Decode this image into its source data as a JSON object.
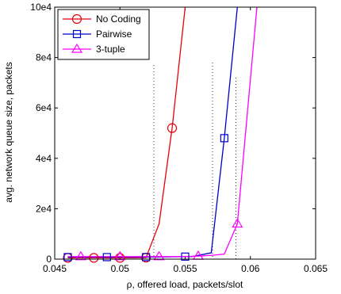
{
  "chart_data": {
    "type": "line",
    "xlabel": "ρ, offered load, packets/slot",
    "ylabel": "avg. network queue size, packets",
    "xlim": [
      0.045,
      0.065
    ],
    "ylim": [
      0,
      100000
    ],
    "xticks": [
      0.045,
      0.05,
      0.055,
      0.06,
      0.065
    ],
    "xtick_labels": [
      "0.045",
      "0.05",
      "0.055",
      "0.06",
      "0.065"
    ],
    "yticks": [
      0,
      20000,
      40000,
      60000,
      80000,
      100000
    ],
    "ytick_labels": [
      "0",
      "2e4",
      "4e4",
      "6e4",
      "8e4",
      "10e4"
    ],
    "grid": false,
    "legend_position": "top-left",
    "vlines": [
      {
        "x": 0.0526,
        "y_top": 77000
      },
      {
        "x": 0.0571,
        "y_top": 78000
      },
      {
        "x": 0.0589,
        "y_top": 72000
      }
    ],
    "series": [
      {
        "name": "No Coding",
        "color": "#e8000b",
        "marker": "circle",
        "x": [
          0.046,
          0.047,
          0.048,
          0.049,
          0.05,
          0.051,
          0.052,
          0.053,
          0.054,
          0.055
        ],
        "y": [
          500,
          500,
          500,
          500,
          500,
          500,
          600,
          14000,
          52000,
          100000
        ],
        "marker_x": [
          0.046,
          0.048,
          0.05,
          0.052,
          0.054
        ],
        "marker_y": [
          500,
          500,
          500,
          600,
          52000
        ]
      },
      {
        "name": "Pairwise",
        "color": "#0000cc",
        "marker": "square",
        "x": [
          0.046,
          0.048,
          0.05,
          0.052,
          0.054,
          0.0555,
          0.057,
          0.058,
          0.059
        ],
        "y": [
          800,
          800,
          800,
          800,
          900,
          1000,
          2500,
          48000,
          100000
        ],
        "marker_x": [
          0.046,
          0.049,
          0.052,
          0.055,
          0.058
        ],
        "marker_y": [
          800,
          800,
          800,
          1000,
          48000
        ]
      },
      {
        "name": "3-tuple",
        "color": "#ff00ff",
        "marker": "triangle",
        "x": [
          0.046,
          0.047,
          0.048,
          0.049,
          0.05,
          0.051,
          0.052,
          0.053,
          0.054,
          0.055,
          0.056,
          0.057,
          0.058,
          0.059,
          0.0605
        ],
        "y": [
          1000,
          1000,
          1000,
          1000,
          1000,
          1000,
          1000,
          1000,
          1000,
          1000,
          1200,
          1500,
          2000,
          14000,
          100000
        ],
        "marker_x": [
          0.047,
          0.05,
          0.053,
          0.056,
          0.059
        ],
        "marker_y": [
          1000,
          1000,
          1000,
          1200,
          14000
        ]
      }
    ]
  }
}
